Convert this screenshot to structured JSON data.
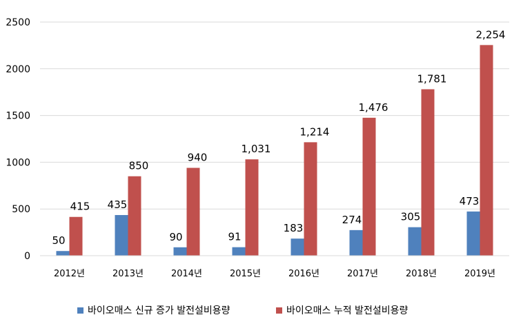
{
  "chart_data": {
    "type": "bar",
    "title": "",
    "xlabel": "",
    "ylabel": "",
    "ylim": [
      0,
      2500
    ],
    "yticks": [
      0,
      500,
      1000,
      1500,
      2000,
      2500
    ],
    "ytick_labels": [
      "0",
      "500",
      "1000",
      "1500",
      "2000",
      "2500"
    ],
    "grid": true,
    "legend_position": "bottom",
    "categories": [
      "2012년",
      "2013년",
      "2014년",
      "2015년",
      "2016년",
      "2017년",
      "2018년",
      "2019년"
    ],
    "series": [
      {
        "name": "바이오매스 신규 증가 발전설비용량",
        "color": "#4f81bd",
        "values": [
          50,
          435,
          90,
          91,
          183,
          274,
          305,
          473
        ],
        "labels": [
          "50",
          "435",
          "90",
          "91",
          "183",
          "274",
          "305",
          "473"
        ]
      },
      {
        "name": "바이오매스 누적 발전설비용량",
        "color": "#c0504d",
        "values": [
          415,
          850,
          940,
          1031,
          1214,
          1476,
          1781,
          2254
        ],
        "labels": [
          "415",
          "850",
          "940",
          "1,031",
          "1,214",
          "1,476",
          "1,781",
          "2,254"
        ]
      }
    ]
  }
}
